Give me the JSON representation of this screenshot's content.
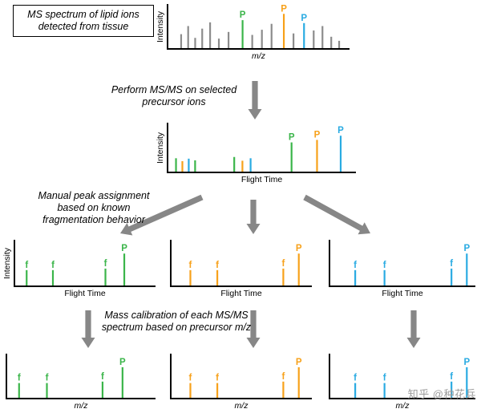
{
  "colors": {
    "green": "#3bb54a",
    "orange": "#f7a11a",
    "blue": "#2aabe2",
    "gray": "#8c8c8c",
    "axis": "#000000",
    "arrow": "#878787"
  },
  "annotations": {
    "step1": "MS spectrum of lipid ions detected from tissue",
    "step2": "Perform MS/MS on selected precursor ions",
    "step3": "Manual peak assignment based on known fragmentation behavior",
    "step4": "Mass calibration of each MS/MS spectrum based on precursor m/z"
  },
  "watermark": "知乎 @种花兵",
  "chart_data": [
    {
      "id": "tissue-ms-spectrum",
      "type": "bar",
      "title": "MS spectrum of lipid ions detected from tissue",
      "xlabel": "m/z",
      "ylabel": "Intensity",
      "x_scale": "relative 0-1 along axis, h = relative intensity",
      "peaks": [
        {
          "x": 0.05,
          "h": 0.4,
          "color": "gray"
        },
        {
          "x": 0.09,
          "h": 0.62,
          "color": "gray"
        },
        {
          "x": 0.13,
          "h": 0.3,
          "color": "gray"
        },
        {
          "x": 0.17,
          "h": 0.55,
          "color": "gray"
        },
        {
          "x": 0.215,
          "h": 0.72,
          "color": "gray"
        },
        {
          "x": 0.265,
          "h": 0.28,
          "color": "gray"
        },
        {
          "x": 0.32,
          "h": 0.46,
          "color": "gray"
        },
        {
          "x": 0.4,
          "h": 0.78,
          "color": "green",
          "label": "P"
        },
        {
          "x": 0.455,
          "h": 0.38,
          "color": "gray"
        },
        {
          "x": 0.51,
          "h": 0.52,
          "color": "gray"
        },
        {
          "x": 0.565,
          "h": 0.68,
          "color": "gray"
        },
        {
          "x": 0.635,
          "h": 0.95,
          "color": "orange",
          "label": "P"
        },
        {
          "x": 0.69,
          "h": 0.42,
          "color": "gray"
        },
        {
          "x": 0.75,
          "h": 0.7,
          "color": "blue",
          "label": "P"
        },
        {
          "x": 0.805,
          "h": 0.5,
          "color": "gray"
        },
        {
          "x": 0.855,
          "h": 0.62,
          "color": "gray"
        },
        {
          "x": 0.905,
          "h": 0.33,
          "color": "gray"
        },
        {
          "x": 0.95,
          "h": 0.22,
          "color": "gray"
        }
      ]
    },
    {
      "id": "msms-combined-flight-time",
      "type": "bar",
      "title": "MS/MS of selected precursor ions",
      "xlabel": "Flight Time",
      "ylabel": "Intensity",
      "peaks": [
        {
          "x": 0.02,
          "h": 0.34,
          "color": "green"
        },
        {
          "x": 0.055,
          "h": 0.27,
          "color": "orange"
        },
        {
          "x": 0.09,
          "h": 0.33,
          "color": "blue"
        },
        {
          "x": 0.125,
          "h": 0.29,
          "color": "green"
        },
        {
          "x": 0.34,
          "h": 0.37,
          "color": "green"
        },
        {
          "x": 0.385,
          "h": 0.28,
          "color": "orange"
        },
        {
          "x": 0.43,
          "h": 0.34,
          "color": "blue"
        },
        {
          "x": 0.655,
          "h": 0.72,
          "color": "green",
          "label": "P"
        },
        {
          "x": 0.795,
          "h": 0.78,
          "color": "orange",
          "label": "P"
        },
        {
          "x": 0.925,
          "h": 0.88,
          "color": "blue",
          "label": "P"
        }
      ]
    },
    {
      "id": "msms-green-flight-time",
      "type": "bar",
      "title": "Assigned MS/MS spectrum (green precursor)",
      "xlabel": "Flight Time",
      "ylabel": "Intensity",
      "peaks": [
        {
          "x": 0.055,
          "h": 0.42,
          "color": "green",
          "label": "f"
        },
        {
          "x": 0.25,
          "h": 0.42,
          "color": "green",
          "label": "f"
        },
        {
          "x": 0.64,
          "h": 0.46,
          "color": "green",
          "label": "f"
        },
        {
          "x": 0.78,
          "h": 0.85,
          "color": "green",
          "label": "P"
        }
      ]
    },
    {
      "id": "msms-orange-flight-time",
      "type": "bar",
      "title": "Assigned MS/MS spectrum (orange precursor)",
      "xlabel": "Flight Time",
      "ylabel": "",
      "peaks": [
        {
          "x": 0.11,
          "h": 0.42,
          "color": "orange",
          "label": "f"
        },
        {
          "x": 0.31,
          "h": 0.42,
          "color": "orange",
          "label": "f"
        },
        {
          "x": 0.8,
          "h": 0.46,
          "color": "orange",
          "label": "f"
        },
        {
          "x": 0.915,
          "h": 0.85,
          "color": "orange",
          "label": "P"
        }
      ]
    },
    {
      "id": "msms-blue-flight-time",
      "type": "bar",
      "title": "Assigned MS/MS spectrum (blue precursor)",
      "xlabel": "Flight Time",
      "ylabel": "",
      "peaks": [
        {
          "x": 0.15,
          "h": 0.42,
          "color": "blue",
          "label": "f"
        },
        {
          "x": 0.36,
          "h": 0.42,
          "color": "blue",
          "label": "f"
        },
        {
          "x": 0.84,
          "h": 0.46,
          "color": "blue",
          "label": "f"
        },
        {
          "x": 0.95,
          "h": 0.85,
          "color": "blue",
          "label": "P"
        }
      ]
    },
    {
      "id": "msms-green-mz",
      "type": "bar",
      "title": "Calibrated MS/MS spectrum (green precursor)",
      "xlabel": "m/z",
      "ylabel": "",
      "peaks": [
        {
          "x": 0.055,
          "h": 0.42,
          "color": "green",
          "label": "f"
        },
        {
          "x": 0.25,
          "h": 0.42,
          "color": "green",
          "label": "f"
        },
        {
          "x": 0.64,
          "h": 0.46,
          "color": "green",
          "label": "f"
        },
        {
          "x": 0.78,
          "h": 0.85,
          "color": "green",
          "label": "P"
        }
      ]
    },
    {
      "id": "msms-orange-mz",
      "type": "bar",
      "title": "Calibrated MS/MS spectrum (orange precursor)",
      "xlabel": "m/z",
      "ylabel": "",
      "peaks": [
        {
          "x": 0.11,
          "h": 0.42,
          "color": "orange",
          "label": "f"
        },
        {
          "x": 0.31,
          "h": 0.42,
          "color": "orange",
          "label": "f"
        },
        {
          "x": 0.8,
          "h": 0.46,
          "color": "orange",
          "label": "f"
        },
        {
          "x": 0.915,
          "h": 0.85,
          "color": "orange",
          "label": "P"
        }
      ]
    },
    {
      "id": "msms-blue-mz",
      "type": "bar",
      "title": "Calibrated MS/MS spectrum (blue precursor)",
      "xlabel": "m/z",
      "ylabel": "",
      "peaks": [
        {
          "x": 0.15,
          "h": 0.42,
          "color": "blue",
          "label": "f"
        },
        {
          "x": 0.36,
          "h": 0.42,
          "color": "blue",
          "label": "f"
        },
        {
          "x": 0.84,
          "h": 0.46,
          "color": "blue",
          "label": "f"
        },
        {
          "x": 0.95,
          "h": 0.85,
          "color": "blue",
          "label": "P"
        }
      ]
    }
  ]
}
